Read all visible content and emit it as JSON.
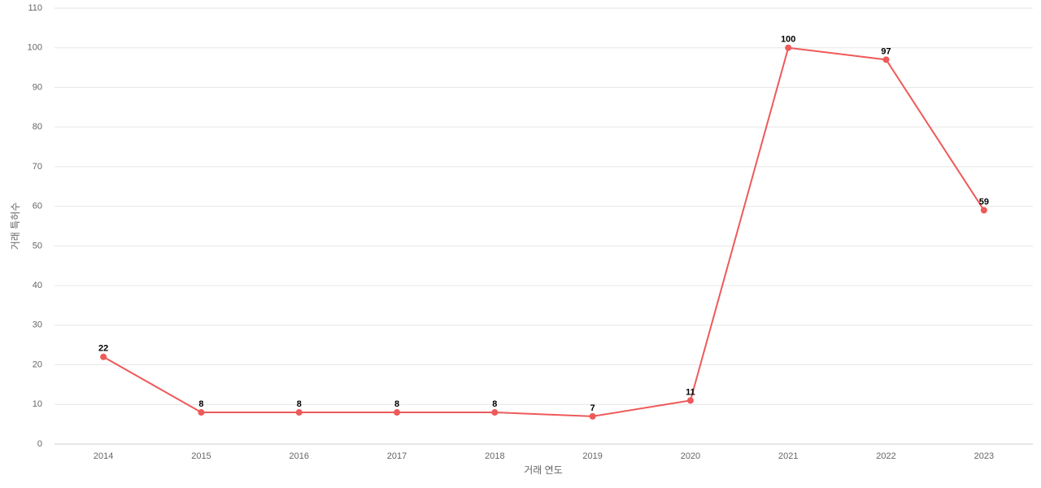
{
  "chart_data": {
    "type": "line",
    "x_label": "거래 연도",
    "y_label": "거래 특허수",
    "categories": [
      "2014",
      "2015",
      "2016",
      "2017",
      "2018",
      "2019",
      "2020",
      "2021",
      "2022",
      "2023"
    ],
    "values": [
      22,
      8,
      8,
      8,
      8,
      7,
      11,
      100,
      97,
      59
    ],
    "color": "#ee5a5a",
    "ylim": [
      0,
      110
    ],
    "yticks": [
      0,
      10,
      20,
      30,
      40,
      50,
      60,
      70,
      80,
      90,
      100,
      110
    ],
    "grid": true
  }
}
